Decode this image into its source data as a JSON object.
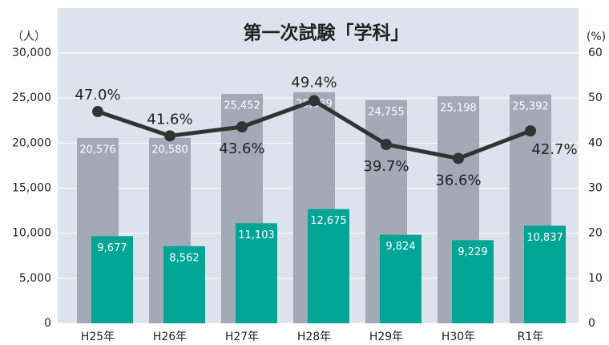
{
  "chart_data": {
    "type": "bar_line",
    "title": "第一次試験「学科」",
    "y_label": "（人）",
    "y2_label": "(%)",
    "categories": [
      "H25年",
      "H26年",
      "H27年",
      "H28年",
      "H29年",
      "H30年",
      "R1年"
    ],
    "series": [
      {
        "type": "bar",
        "color": "#a4a9b8",
        "values": [
          20576,
          20580,
          25452,
          25639,
          24755,
          25198,
          25392
        ],
        "value_labels": [
          "20,576",
          "20,580",
          "25,452",
          "25,639",
          "24,755",
          "25,198",
          "25,392"
        ]
      },
      {
        "type": "bar",
        "color": "#00a596",
        "values": [
          9677,
          8562,
          11103,
          12675,
          9824,
          9229,
          10837
        ],
        "value_labels": [
          "9,677",
          "8,562",
          "11,103",
          "12,675",
          "9,824",
          "9,229",
          "10,837"
        ]
      },
      {
        "type": "line",
        "axis": "y2",
        "color": "#333333",
        "values": [
          47.0,
          41.6,
          43.6,
          49.4,
          39.7,
          36.6,
          42.7
        ],
        "value_labels": [
          "47.0%",
          "41.6%",
          "43.6%",
          "49.4%",
          "39.7%",
          "36.6%",
          "42.7%"
        ]
      }
    ],
    "ylim": [
      0,
      30000
    ],
    "yticks": [
      0,
      {
        "value": 5000,
        "label": "5,000"
      },
      {
        "value": 10000,
        "label": "10,000"
      },
      {
        "value": 15000,
        "label": "15,000"
      },
      {
        "value": 20000,
        "label": "20,000"
      },
      {
        "value": 25000,
        "label": "25,000"
      },
      {
        "value": 30000,
        "label": "30,000"
      }
    ],
    "y2lim": [
      0,
      60
    ],
    "y2ticks": [
      0,
      10,
      20,
      30,
      40,
      50,
      60
    ],
    "grid": true
  }
}
